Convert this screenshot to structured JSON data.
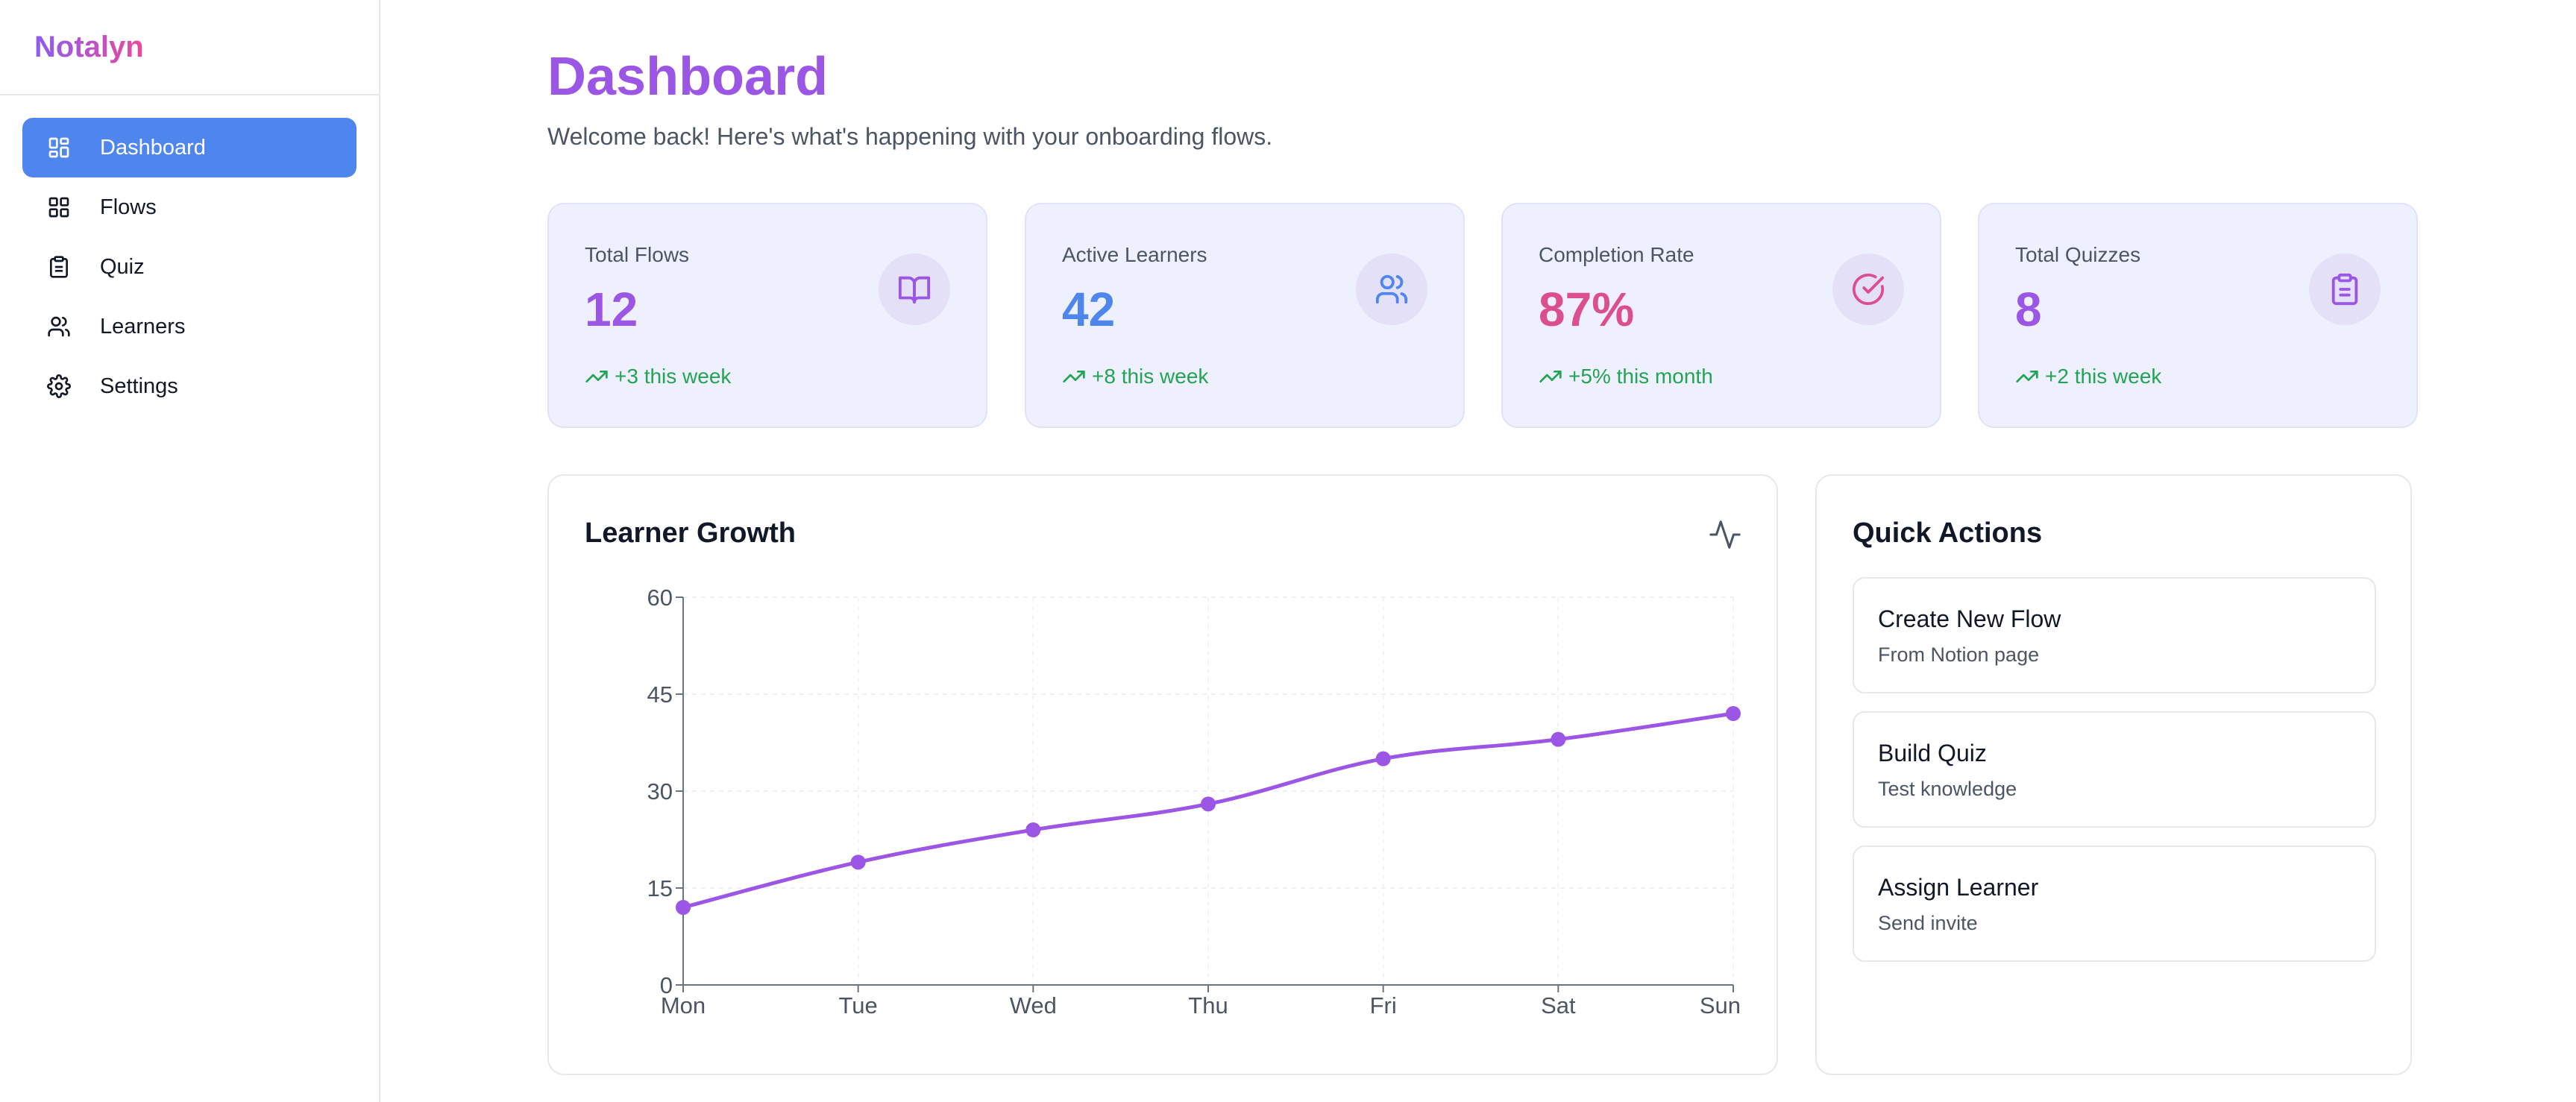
{
  "brand": "Notalyn",
  "nav": [
    {
      "label": "Dashboard",
      "icon": "dashboard-icon",
      "active": true
    },
    {
      "label": "Flows",
      "icon": "flows-icon",
      "active": false
    },
    {
      "label": "Quiz",
      "icon": "clipboard-icon",
      "active": false
    },
    {
      "label": "Learners",
      "icon": "users-icon",
      "active": false
    },
    {
      "label": "Settings",
      "icon": "gear-icon",
      "active": false
    }
  ],
  "header": {
    "title": "Dashboard",
    "subtitle": "Welcome back! Here's what's happening with your onboarding flows."
  },
  "stats": [
    {
      "label": "Total Flows",
      "value": "12",
      "delta": "+3 this week",
      "value_color": "#9b56e6",
      "icon": "book-open-icon"
    },
    {
      "label": "Active Learners",
      "value": "42",
      "delta": "+8 this week",
      "value_color": "#4f86ee",
      "icon": "users-icon"
    },
    {
      "label": "Completion Rate",
      "value": "87%",
      "delta": "+5% this month",
      "value_color": "#db4f91",
      "icon": "check-circle-icon"
    },
    {
      "label": "Total Quizzes",
      "value": "8",
      "delta": "+2 this week",
      "value_color": "#9b56e6",
      "icon": "clipboard-icon"
    }
  ],
  "chart_card": {
    "title": "Learner Growth",
    "icon": "activity-icon"
  },
  "chart_data": {
    "type": "line",
    "categories": [
      "Mon",
      "Tue",
      "Wed",
      "Thu",
      "Fri",
      "Sat",
      "Sun"
    ],
    "values": [
      12,
      19,
      24,
      28,
      35,
      38,
      42
    ],
    "ylim": [
      0,
      60
    ],
    "yticks": [
      "0",
      "15",
      "30",
      "45",
      "60"
    ],
    "xlabel": "",
    "ylabel": "",
    "line_color": "#9b56e6",
    "grid": true
  },
  "quick_actions": {
    "title": "Quick Actions",
    "items": [
      {
        "title": "Create New Flow",
        "subtitle": "From Notion page"
      },
      {
        "title": "Build Quiz",
        "subtitle": "Test knowledge"
      },
      {
        "title": "Assign Learner",
        "subtitle": "Send invite"
      }
    ]
  },
  "colors": {
    "accent": "#4f86ee",
    "purple": "#9b56e6",
    "pink": "#db4f91",
    "success": "#22a355"
  }
}
